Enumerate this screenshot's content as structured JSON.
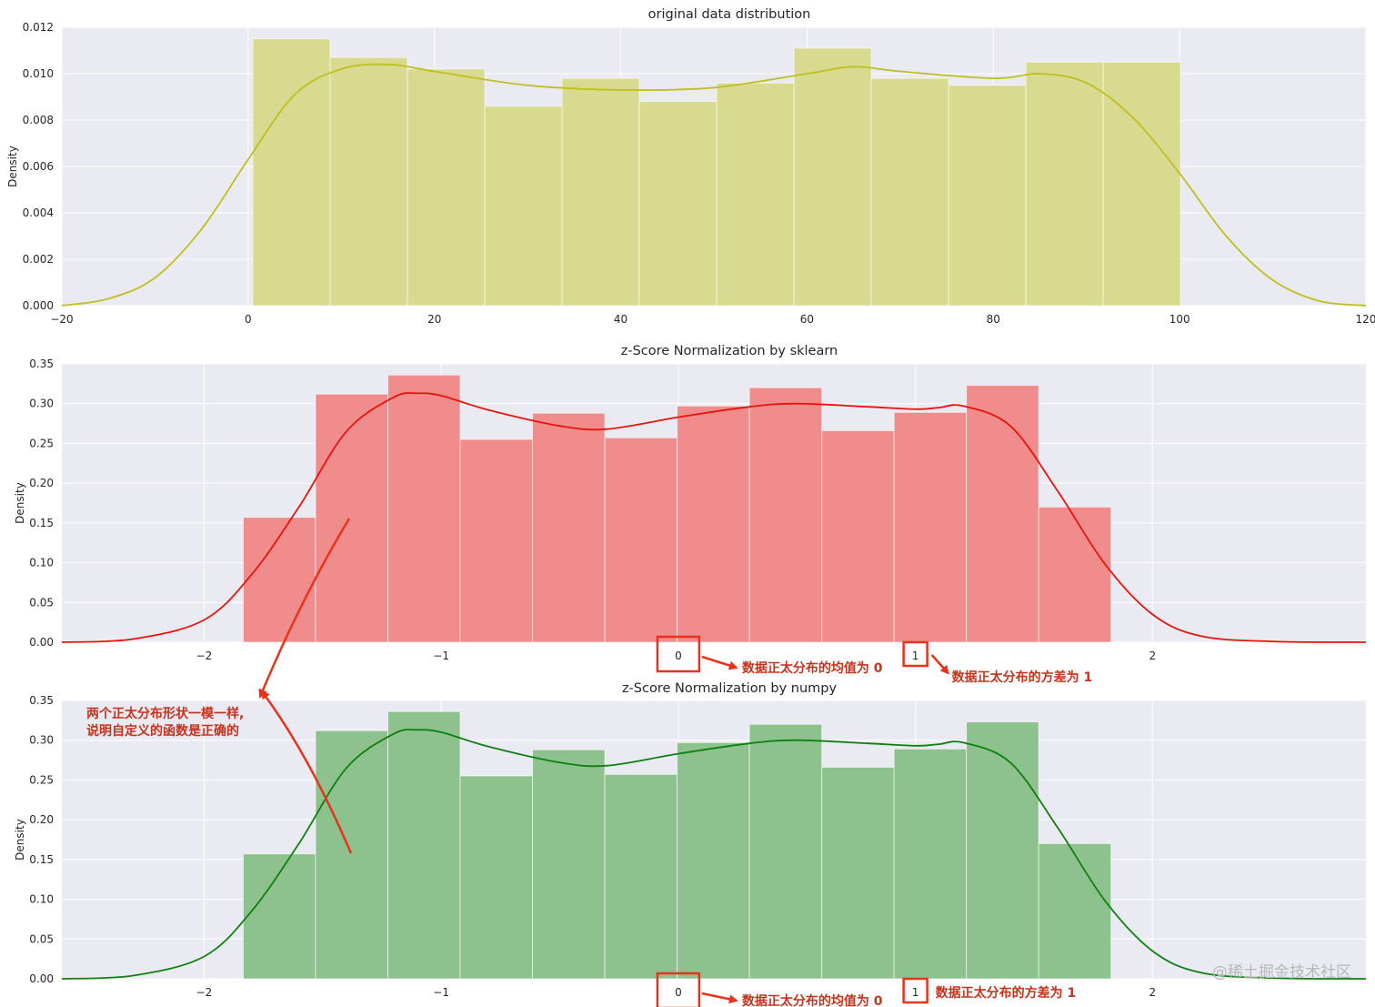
{
  "chart_data": [
    {
      "type": "bar",
      "title": "original data distribution",
      "ylabel": "Density",
      "xlim": [
        -20,
        120
      ],
      "ylim": [
        0,
        0.012
      ],
      "xticks": [
        "−20",
        "0",
        "20",
        "40",
        "60",
        "80",
        "100",
        "120"
      ],
      "xtick_values": [
        -20,
        0,
        20,
        40,
        60,
        80,
        100,
        120
      ],
      "yticks": [
        "0.000",
        "0.002",
        "0.004",
        "0.006",
        "0.008",
        "0.010",
        "0.012"
      ],
      "ytick_values": [
        0,
        0.002,
        0.004,
        0.006,
        0.008,
        0.01,
        0.012
      ],
      "bar_color": "#d8da90",
      "kde_color": "#bfbf1f",
      "bin_edges": [
        0.5,
        8.8,
        17.1,
        25.4,
        33.7,
        42.0,
        50.3,
        58.6,
        66.9,
        75.2,
        83.5,
        91.8,
        100.1
      ],
      "values": [
        0.0115,
        0.0107,
        0.0102,
        0.0086,
        0.0098,
        0.0088,
        0.0096,
        0.0111,
        0.0098,
        0.0095,
        0.0105,
        0.0105
      ],
      "kde": {
        "x": [
          -20,
          -15,
          -10,
          -5,
          0,
          5,
          10,
          15,
          20,
          30,
          40,
          50,
          60,
          65,
          70,
          80,
          85,
          90,
          95,
          100,
          105,
          110,
          115,
          120
        ],
        "y": [
          0.0,
          0.0003,
          0.0012,
          0.0033,
          0.0063,
          0.0091,
          0.0102,
          0.0104,
          0.0101,
          0.0095,
          0.0093,
          0.0094,
          0.01,
          0.0103,
          0.0101,
          0.0098,
          0.01,
          0.0096,
          0.0081,
          0.0057,
          0.003,
          0.0011,
          0.0002,
          0.0
        ]
      }
    },
    {
      "type": "bar",
      "title": "z-Score Normalization by sklearn",
      "ylabel": "Density",
      "xlim": [
        -2.6,
        2.9
      ],
      "ylim": [
        0,
        0.35
      ],
      "xticks": [
        "−2",
        "−1",
        "0",
        "1",
        "2"
      ],
      "xtick_values": [
        -2,
        -1,
        0,
        1,
        2
      ],
      "yticks": [
        "0.00",
        "0.05",
        "0.10",
        "0.15",
        "0.20",
        "0.25",
        "0.30",
        "0.35"
      ],
      "ytick_values": [
        0,
        0.05,
        0.1,
        0.15,
        0.2,
        0.25,
        0.3,
        0.35
      ],
      "bar_color": "#f08c8c",
      "kde_color": "#e8140c",
      "bin_edges": [
        -1.835,
        -1.53,
        -1.225,
        -0.92,
        -0.615,
        -0.31,
        -0.005,
        0.3,
        0.605,
        0.91,
        1.215,
        1.52,
        1.825
      ],
      "values": [
        0.157,
        0.312,
        0.336,
        0.255,
        0.288,
        0.257,
        0.297,
        0.32,
        0.266,
        0.289,
        0.323,
        0.17
      ],
      "kde": {
        "x": [
          -2.6,
          -2.3,
          -2.0,
          -1.8,
          -1.6,
          -1.4,
          -1.2,
          -1.1,
          -1.0,
          -0.8,
          -0.5,
          -0.3,
          0.0,
          0.3,
          0.5,
          0.8,
          1.0,
          1.1,
          1.2,
          1.4,
          1.6,
          1.8,
          2.0,
          2.2,
          2.5,
          2.9
        ],
        "y": [
          0.0,
          0.004,
          0.028,
          0.085,
          0.17,
          0.265,
          0.308,
          0.313,
          0.31,
          0.292,
          0.272,
          0.268,
          0.283,
          0.296,
          0.3,
          0.296,
          0.293,
          0.295,
          0.297,
          0.272,
          0.19,
          0.098,
          0.035,
          0.008,
          0.001,
          0.0
        ]
      },
      "annotations": {
        "mean_tick": "0",
        "mean_note": "数据正太分布的均值为 0",
        "std_tick": "1",
        "std_note": "数据正太分布的方差为 1"
      }
    },
    {
      "type": "bar",
      "title": "z-Score Normalization by numpy",
      "ylabel": "Density",
      "xlim": [
        -2.6,
        2.9
      ],
      "ylim": [
        0,
        0.35
      ],
      "xticks": [
        "−2",
        "−1",
        "0",
        "1",
        "2"
      ],
      "xtick_values": [
        -2,
        -1,
        0,
        1,
        2
      ],
      "yticks": [
        "0.00",
        "0.05",
        "0.10",
        "0.15",
        "0.20",
        "0.25",
        "0.30",
        "0.35"
      ],
      "ytick_values": [
        0,
        0.05,
        0.1,
        0.15,
        0.2,
        0.25,
        0.3,
        0.35
      ],
      "bar_color": "#8dc18d",
      "kde_color": "#0f800f",
      "bin_edges": [
        -1.835,
        -1.53,
        -1.225,
        -0.92,
        -0.615,
        -0.31,
        -0.005,
        0.3,
        0.605,
        0.91,
        1.215,
        1.52,
        1.825
      ],
      "values": [
        0.157,
        0.312,
        0.336,
        0.255,
        0.288,
        0.257,
        0.297,
        0.32,
        0.266,
        0.289,
        0.323,
        0.17
      ],
      "kde": {
        "x": [
          -2.6,
          -2.3,
          -2.0,
          -1.8,
          -1.6,
          -1.4,
          -1.2,
          -1.1,
          -1.0,
          -0.8,
          -0.5,
          -0.3,
          0.0,
          0.3,
          0.5,
          0.8,
          1.0,
          1.1,
          1.2,
          1.4,
          1.6,
          1.8,
          2.0,
          2.2,
          2.5,
          2.9
        ],
        "y": [
          0.0,
          0.004,
          0.028,
          0.085,
          0.17,
          0.265,
          0.308,
          0.313,
          0.31,
          0.292,
          0.272,
          0.268,
          0.283,
          0.296,
          0.3,
          0.296,
          0.293,
          0.295,
          0.297,
          0.272,
          0.19,
          0.098,
          0.035,
          0.008,
          0.001,
          0.0
        ]
      },
      "annotations": {
        "mean_tick": "0",
        "mean_note": "数据正太分布的均值为 0",
        "std_tick": "1",
        "std_note": "数据正太分布的方差为 1"
      }
    }
  ],
  "comparison_note": {
    "line1": "两个正太分布形状一模一样,",
    "line2": "说明自定义的函数是正确的"
  },
  "annotation_color": "#e8331c",
  "watermark": "@稀土掘金技术社区"
}
